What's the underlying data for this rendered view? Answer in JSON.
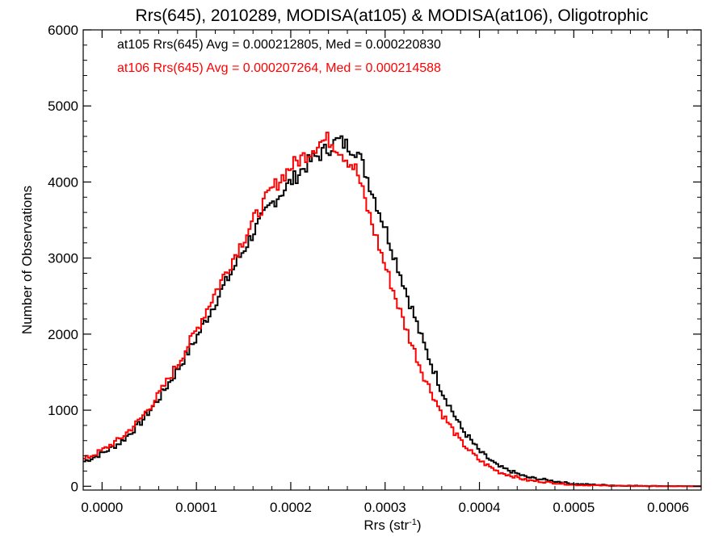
{
  "chart_data": {
    "type": "line",
    "step": true,
    "title": "Rrs(645), 2010289, MODISA(at105) & MODISA(at106), Oligotrophic",
    "xlabel": "Rrs (str",
    "xlabel_sup": "-1",
    "xlabel_end": ")",
    "ylabel": "Number of Observations",
    "xlim": [
      -2e-05,
      0.000635
    ],
    "ylim": [
      -50,
      6000
    ],
    "xticks": [
      0.0,
      0.0001,
      0.0002,
      0.0003,
      0.0004,
      0.0005,
      0.0006
    ],
    "xtick_labels": [
      "0.0000",
      "0.0001",
      "0.0002",
      "0.0003",
      "0.0004",
      "0.0005",
      "0.0006"
    ],
    "yticks": [
      0,
      1000,
      2000,
      3000,
      4000,
      5000,
      6000
    ],
    "ytick_labels": [
      "0",
      "1000",
      "2000",
      "3000",
      "4000",
      "5000",
      "6000"
    ],
    "grid": false,
    "legend_position": "top-left",
    "series": [
      {
        "name": "at105",
        "color": "#000000",
        "legend_text": "at105 Rrs(645) Avg = 0.000212805, Med = 0.000220830",
        "x": [
          -2e-05,
          0.0,
          2e-05,
          4e-05,
          6e-05,
          8e-05,
          0.0001,
          0.00012,
          0.00014,
          0.00016,
          0.00018,
          0.0002,
          0.00022,
          0.00024,
          0.00025,
          0.00026,
          0.00027,
          0.00028,
          0.0003,
          0.00032,
          0.00034,
          0.00036,
          0.00038,
          0.0004,
          0.00042,
          0.00045,
          0.0005,
          0.00055,
          0.0006,
          0.000635
        ],
        "y": [
          320,
          430,
          580,
          820,
          1150,
          1530,
          1950,
          2420,
          2880,
          3330,
          3720,
          4000,
          4270,
          4440,
          4550,
          4480,
          4420,
          4100,
          3400,
          2650,
          1900,
          1260,
          780,
          460,
          260,
          120,
          30,
          8,
          2,
          0
        ]
      },
      {
        "name": "at106",
        "color": "#ff0000",
        "legend_text": "at106 Rrs(645) Avg = 0.000207264, Med = 0.000214588",
        "x": [
          -2e-05,
          0.0,
          2e-05,
          4e-05,
          6e-05,
          8e-05,
          0.0001,
          0.00012,
          0.00014,
          0.00016,
          0.00018,
          0.0002,
          0.00022,
          0.00023,
          0.00024,
          0.00025,
          0.00026,
          0.00027,
          0.00028,
          0.0003,
          0.00032,
          0.00034,
          0.00036,
          0.00038,
          0.0004,
          0.00042,
          0.00045,
          0.0005,
          0.00055,
          0.0006,
          0.000635
        ],
        "y": [
          350,
          470,
          630,
          870,
          1200,
          1600,
          2050,
          2550,
          3020,
          3480,
          3900,
          4200,
          4400,
          4520,
          4560,
          4450,
          4300,
          4150,
          3700,
          2900,
          2150,
          1480,
          960,
          590,
          340,
          190,
          80,
          18,
          4,
          1,
          0
        ]
      }
    ]
  }
}
